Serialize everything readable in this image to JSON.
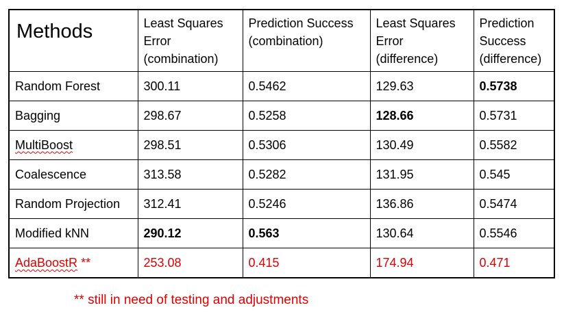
{
  "table": {
    "headers": [
      "Methods",
      "Least Squares Error (combination)",
      "Prediction Success (combination)",
      "Least Squares Error (difference)",
      "Prediction Success (difference)"
    ],
    "rows": [
      {
        "method": "Random Forest",
        "lse_comb": "300.11",
        "ps_comb": "0.5462",
        "lse_diff": "129.63",
        "ps_diff": "0.5738"
      },
      {
        "method": "Bagging",
        "lse_comb": "298.67",
        "ps_comb": "0.5258",
        "lse_diff": "128.66",
        "ps_diff": "0.5731"
      },
      {
        "method": "MultiBoost",
        "lse_comb": "298.51",
        "ps_comb": "0.5306",
        "lse_diff": "130.49",
        "ps_diff": "0.5582"
      },
      {
        "method": "Coalescence",
        "lse_comb": "313.58",
        "ps_comb": "0.5282",
        "lse_diff": "131.95",
        "ps_diff": "0.545"
      },
      {
        "method": "Random Projection",
        "lse_comb": "312.41",
        "ps_comb": "0.5246",
        "lse_diff": "136.86",
        "ps_diff": "0.5474"
      },
      {
        "method": "Modified kNN",
        "lse_comb": "290.12",
        "ps_comb": "0.563",
        "lse_diff": "130.64",
        "ps_diff": "0.5546"
      },
      {
        "method": "AdaBoostR",
        "method_suffix": " **",
        "lse_comb": "253.08",
        "ps_comb": "0.415",
        "lse_diff": "174.94",
        "ps_diff": "0.471"
      }
    ]
  },
  "footnote": "** still in need of testing and adjustments",
  "colors": {
    "highlight_row": "#e00000"
  }
}
